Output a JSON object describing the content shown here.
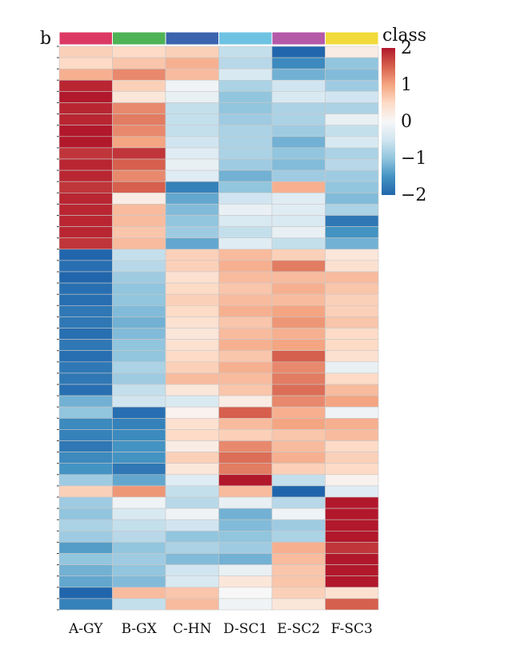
{
  "panel_label": "b",
  "chart_data": {
    "type": "heatmap",
    "title": "",
    "columns": [
      "A-GY",
      "B-GX",
      "C-HN",
      "D-SC1",
      "E-SC2",
      "F-SC3"
    ],
    "class_colors": [
      "#dc3a64",
      "#4db356",
      "#3b64ae",
      "#6ec3e3",
      "#b45aa9",
      "#f1da3a"
    ],
    "legend": {
      "title": "class",
      "ticks": [
        "2",
        "1",
        "0",
        "−1",
        "−2"
      ],
      "tick_values": [
        2,
        1,
        0,
        -1,
        -2
      ],
      "range": [
        -2,
        2
      ],
      "colors": [
        "#b2182b",
        "#d6604d",
        "#f4a582",
        "#fddbc7",
        "#f7f7f7",
        "#d1e5f0",
        "#92c5de",
        "#4393c3",
        "#2166ac"
      ]
    },
    "values": [
      [
        0.6,
        0.5,
        0.6,
        -0.6,
        -2.0,
        0.2
      ],
      [
        0.5,
        0.7,
        0.9,
        -0.7,
        -1.6,
        -1.0
      ],
      [
        0.9,
        1.2,
        0.8,
        -0.4,
        -1.2,
        -1.1
      ],
      [
        1.9,
        0.6,
        -0.1,
        -0.8,
        -0.5,
        -0.9
      ],
      [
        2.3,
        0.3,
        -0.2,
        -1.0,
        -0.4,
        -0.5
      ],
      [
        1.9,
        1.2,
        -0.6,
        -1.0,
        -0.8,
        -0.8
      ],
      [
        1.9,
        1.3,
        -0.6,
        -0.9,
        -0.8,
        -0.2
      ],
      [
        2.0,
        1.2,
        -0.6,
        -0.8,
        -0.9,
        -0.6
      ],
      [
        2.0,
        1.0,
        -0.5,
        -0.8,
        -1.2,
        -0.4
      ],
      [
        1.8,
        1.8,
        -0.3,
        -0.8,
        -1.0,
        -0.8
      ],
      [
        1.9,
        1.5,
        -0.2,
        -0.9,
        -1.1,
        -0.7
      ],
      [
        1.9,
        1.2,
        -0.3,
        -1.2,
        -0.9,
        -0.9
      ],
      [
        1.8,
        1.5,
        -1.7,
        -1.0,
        0.9,
        -1.0
      ],
      [
        1.9,
        0.2,
        -1.3,
        -0.5,
        -0.3,
        -1.1
      ],
      [
        1.9,
        0.8,
        -1.1,
        -0.2,
        -0.3,
        -0.8
      ],
      [
        1.9,
        0.8,
        -1.0,
        -0.4,
        -0.4,
        -1.8
      ],
      [
        1.9,
        0.7,
        -0.9,
        -0.6,
        -0.2,
        -1.5
      ],
      [
        1.8,
        0.8,
        -1.3,
        -0.3,
        -0.6,
        -1.2
      ],
      [
        -2.0,
        -0.6,
        0.6,
        0.8,
        0.6,
        0.3
      ],
      [
        -1.9,
        -0.7,
        0.6,
        0.9,
        1.3,
        0.4
      ],
      [
        -2.0,
        -0.9,
        0.4,
        0.8,
        0.8,
        0.8
      ],
      [
        -1.9,
        -1.0,
        0.5,
        0.7,
        0.9,
        0.7
      ],
      [
        -1.9,
        -1.0,
        0.6,
        0.8,
        0.8,
        0.6
      ],
      [
        -1.8,
        -1.1,
        0.5,
        0.9,
        1.0,
        0.6
      ],
      [
        -1.8,
        -1.2,
        0.4,
        0.7,
        1.1,
        0.7
      ],
      [
        -1.9,
        -1.1,
        0.3,
        0.8,
        0.9,
        0.5
      ],
      [
        -1.8,
        -1.0,
        0.4,
        0.9,
        1.0,
        0.5
      ],
      [
        -1.9,
        -1.0,
        0.5,
        0.7,
        1.5,
        0.4
      ],
      [
        -1.8,
        -0.8,
        0.6,
        0.9,
        1.2,
        -0.2
      ],
      [
        -1.8,
        -0.9,
        0.8,
        0.8,
        1.3,
        0.5
      ],
      [
        -1.9,
        -0.6,
        0.3,
        0.7,
        1.4,
        0.8
      ],
      [
        -1.2,
        -0.5,
        -0.4,
        0.2,
        1.2,
        1.0
      ],
      [
        -1.0,
        -1.9,
        0.1,
        1.5,
        0.9,
        -0.1
      ],
      [
        -1.6,
        -1.7,
        0.4,
        0.8,
        1.0,
        0.9
      ],
      [
        -1.7,
        -1.6,
        0.5,
        0.6,
        0.7,
        0.8
      ],
      [
        -1.8,
        -1.5,
        0.2,
        1.2,
        0.8,
        0.5
      ],
      [
        -1.6,
        -1.5,
        0.6,
        1.4,
        0.9,
        0.6
      ],
      [
        -1.5,
        -1.8,
        0.3,
        1.3,
        0.6,
        0.5
      ],
      [
        -0.9,
        -1.3,
        -0.3,
        2.4,
        -0.6,
        0.1
      ],
      [
        0.6,
        1.1,
        -0.6,
        0.8,
        -2.0,
        -0.3
      ],
      [
        -0.9,
        -0.1,
        -0.7,
        -0.2,
        -0.7,
        2.3
      ],
      [
        -1.0,
        -0.4,
        -0.1,
        -1.2,
        -0.1,
        2.2
      ],
      [
        -0.8,
        -0.6,
        -0.5,
        -1.1,
        -0.9,
        2.4
      ],
      [
        -0.9,
        -0.7,
        -1.0,
        -1.0,
        -0.8,
        2.0
      ],
      [
        -1.4,
        -1.0,
        -0.8,
        -0.9,
        0.9,
        1.8
      ],
      [
        -1.0,
        -0.9,
        -1.1,
        -1.2,
        0.8,
        2.1
      ],
      [
        -1.2,
        -1.0,
        -0.5,
        -0.2,
        0.7,
        2.0
      ],
      [
        -1.3,
        -1.1,
        -0.4,
        0.3,
        0.7,
        2.3
      ],
      [
        -2.0,
        0.8,
        0.7,
        0.0,
        0.6,
        0.4
      ],
      [
        -1.7,
        -0.6,
        0.8,
        -0.1,
        0.3,
        1.5
      ]
    ]
  }
}
